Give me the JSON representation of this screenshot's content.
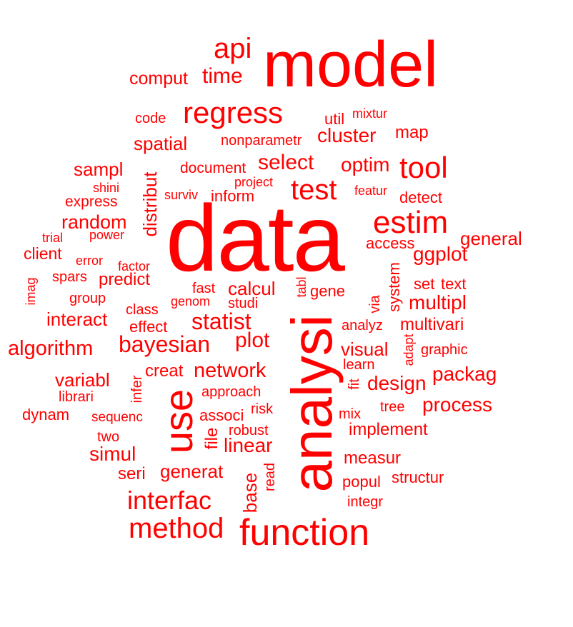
{
  "color": "#ff0000",
  "words": [
    "model",
    "data",
    "analysi",
    "function",
    "use",
    "method",
    "estim",
    "test",
    "regress",
    "tool",
    "statist",
    "bayesian",
    "api",
    "time",
    "comput",
    "algorithm",
    "interfac",
    "network",
    "select",
    "optim",
    "cluster",
    "spatial",
    "sampl",
    "distribut",
    "random",
    "express",
    "shini",
    "surviv",
    "inform",
    "document",
    "project",
    "featur",
    "detect",
    "map",
    "util",
    "mixtur",
    "nonparametr",
    "code",
    "trial",
    "power",
    "client",
    "error",
    "factor",
    "spars",
    "predict",
    "imag",
    "group",
    "interact",
    "fast",
    "genom",
    "calcul",
    "studi",
    "tabl",
    "gene",
    "via",
    "system",
    "general",
    "access",
    "ggplot",
    "set",
    "text",
    "multipl",
    "analyz",
    "multivari",
    "adapt",
    "graphic",
    "visual",
    "learn",
    "class",
    "effect",
    "plot",
    "creat",
    "variabl",
    "librari",
    "infer",
    "approach",
    "dynam",
    "sequenc",
    "associ",
    "risk",
    "robust",
    "file",
    "linear",
    "mix",
    "tree",
    "process",
    "packag",
    "design",
    "fit",
    "implement",
    "measur",
    "two",
    "simul",
    "seri",
    "generat",
    "base",
    "read",
    "popul",
    "structur",
    "integr"
  ]
}
